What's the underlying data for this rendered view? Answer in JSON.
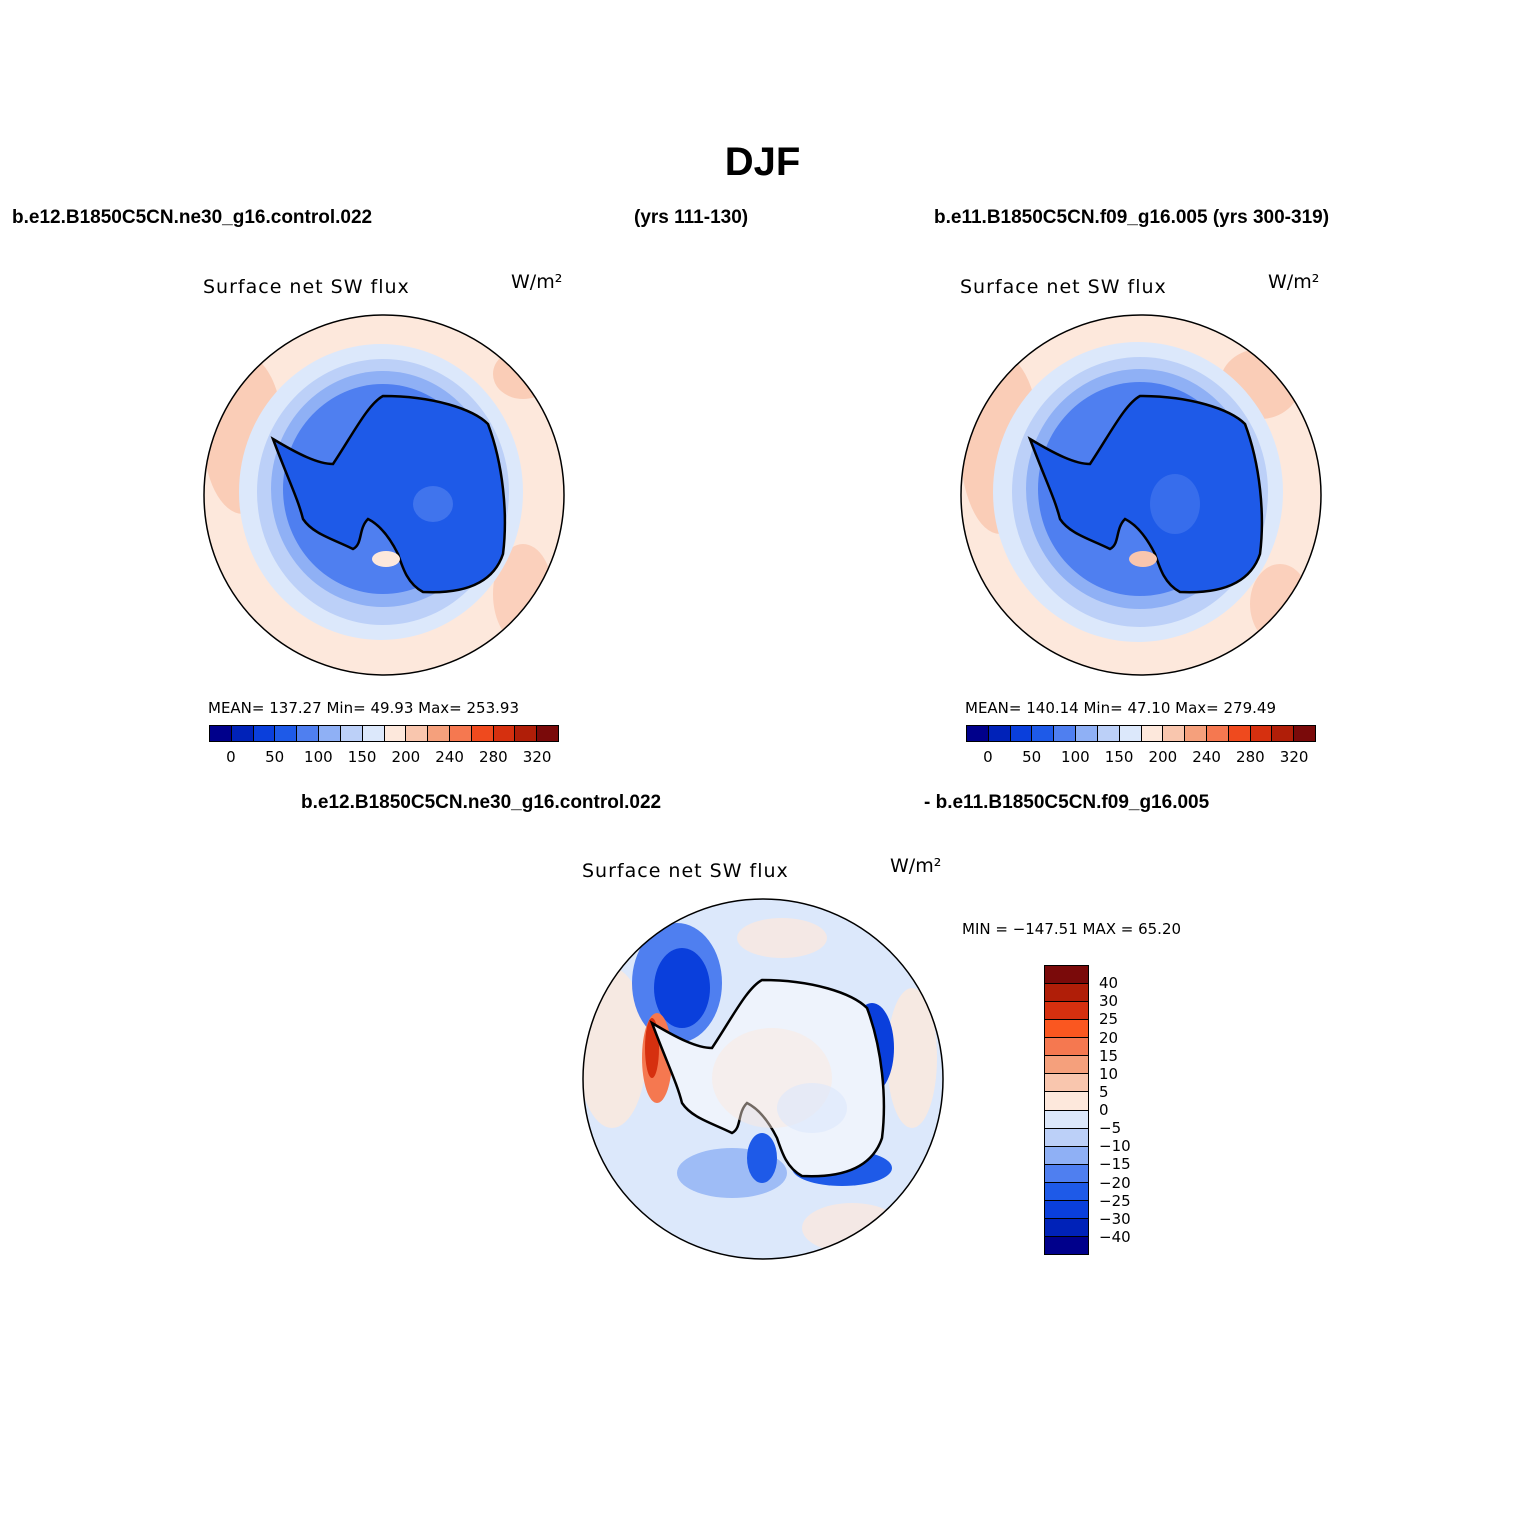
{
  "title": "DJF",
  "case1_label": "b.e12.B1850C5CN.ne30_g16.control.022",
  "case1_years": "(yrs 111-130)",
  "case2_label": "b.e11.B1850C5CN.f09_g16.005 (yrs 300-319)",
  "diff_case1": "b.e12.B1850C5CN.ne30_g16.control.022",
  "diff_case2": "- b.e11.B1850C5CN.f09_g16.005",
  "panel1": {
    "variable": "Surface net SW flux",
    "units": "W/m²",
    "stats": "MEAN= 137.27   Min=   49.93   Max= 253.93"
  },
  "panel2": {
    "variable": "Surface net SW flux",
    "units": "W/m²",
    "stats": "MEAN= 140.14   Min=   47.10   Max= 279.49"
  },
  "panel3": {
    "variable": "Surface net SW flux",
    "units": "W/m²",
    "stats": "MIN = −147.51  MAX =   65.20"
  },
  "abs_colorbar": {
    "colors": [
      "#00008b",
      "#0022b8",
      "#0a3fdc",
      "#1e5ae8",
      "#4f7ff0",
      "#8fb0f5",
      "#bcd0f8",
      "#dce8fb",
      "#fde8dc",
      "#f9c6ae",
      "#f5a07c",
      "#f57850",
      "#ef4a1e",
      "#d6300f",
      "#b01e08",
      "#7a0a0a"
    ],
    "ticks": [
      "0",
      "50",
      "100",
      "150",
      "200",
      "240",
      "280",
      "320"
    ]
  },
  "diff_colorbar": {
    "colors": [
      "#7a0a0a",
      "#b01e08",
      "#d6300f",
      "#fa5720",
      "#f57850",
      "#f5a07c",
      "#f9c6ae",
      "#fde8dc",
      "#dce8fb",
      "#bcd0f8",
      "#8fb0f5",
      "#4f7ff0",
      "#1e5ae8",
      "#0a3fdc",
      "#0022b8",
      "#00008b"
    ],
    "ticks": [
      "40",
      "30",
      "25",
      "20",
      "15",
      "10",
      "5",
      "0",
      "−5",
      "−10",
      "−15",
      "−20",
      "−25",
      "−30",
      "−40"
    ]
  }
}
